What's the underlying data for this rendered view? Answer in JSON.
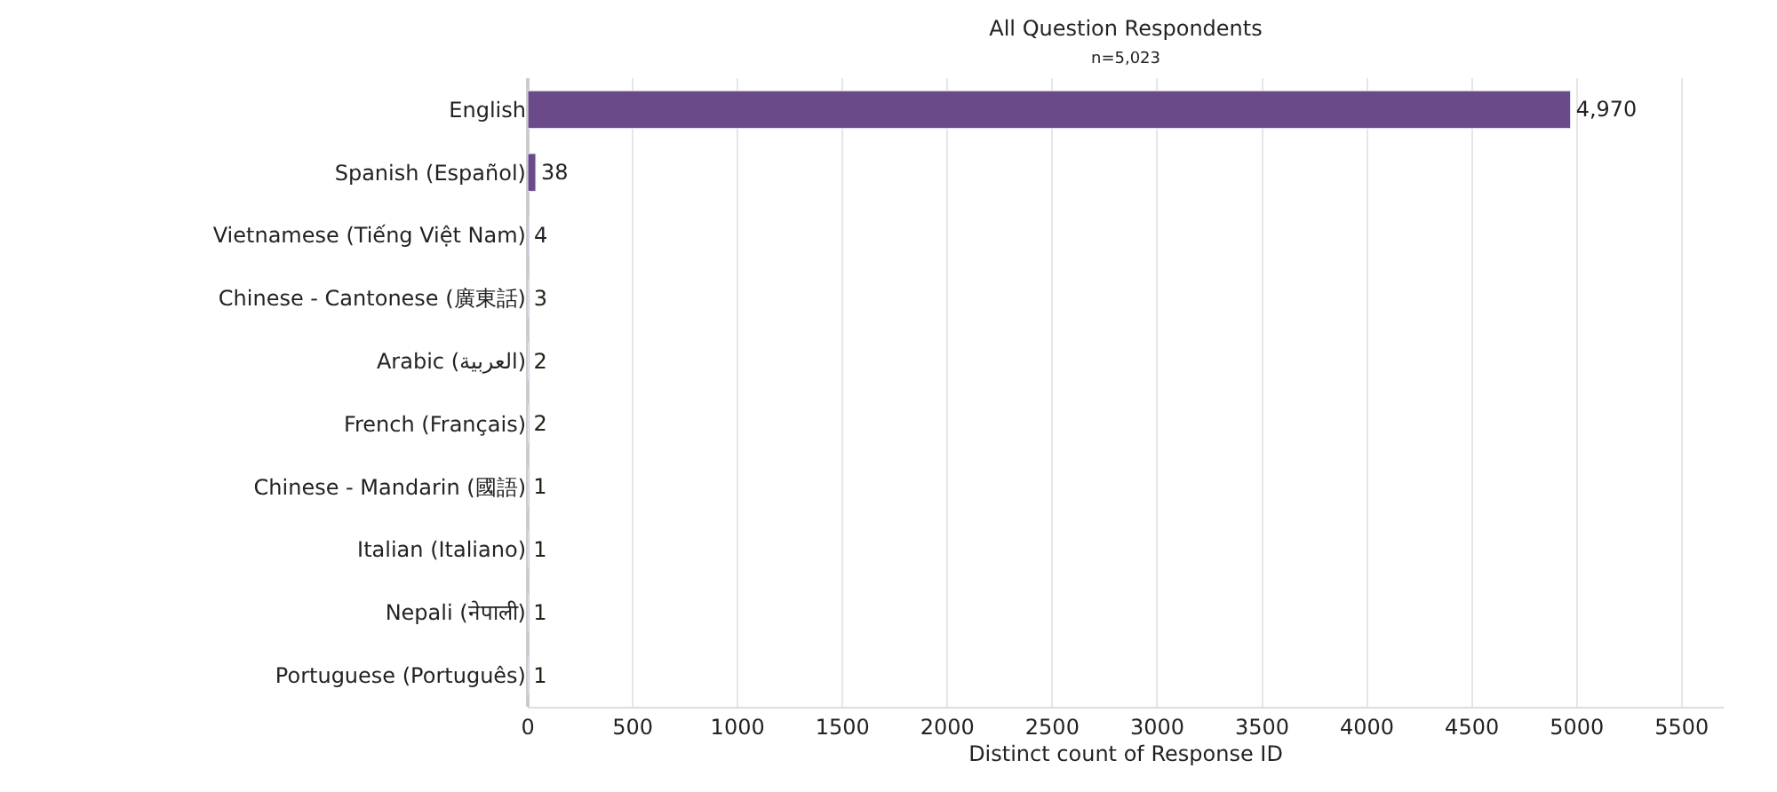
{
  "chart_data": {
    "type": "bar",
    "orientation": "horizontal",
    "title": "All Question Respondents",
    "subtitle": "n=5,023",
    "xlabel": "Distinct count of Response ID",
    "categories": [
      "English",
      "Spanish (Español)",
      "Vietnamese (Tiếng Việt Nam)",
      "Chinese - Cantonese (廣東話)",
      "Arabic (العربية)",
      "French (Français)",
      "Chinese - Mandarin (國語)",
      "Italian (Italiano)",
      "Nepali (नेपाली)",
      "Portuguese (Português)"
    ],
    "values": [
      4970,
      38,
      4,
      3,
      2,
      2,
      1,
      1,
      1,
      1
    ],
    "value_labels": [
      "4,970",
      "38",
      "4",
      "3",
      "2",
      "2",
      "1",
      "1",
      "1",
      "1"
    ],
    "color": "#6b4a8a",
    "xlim": [
      0,
      5700
    ],
    "xticks": [
      0,
      500,
      1000,
      1500,
      2000,
      2500,
      3000,
      3500,
      4000,
      4500,
      5000,
      5500
    ],
    "grid": "x",
    "legend": false
  }
}
